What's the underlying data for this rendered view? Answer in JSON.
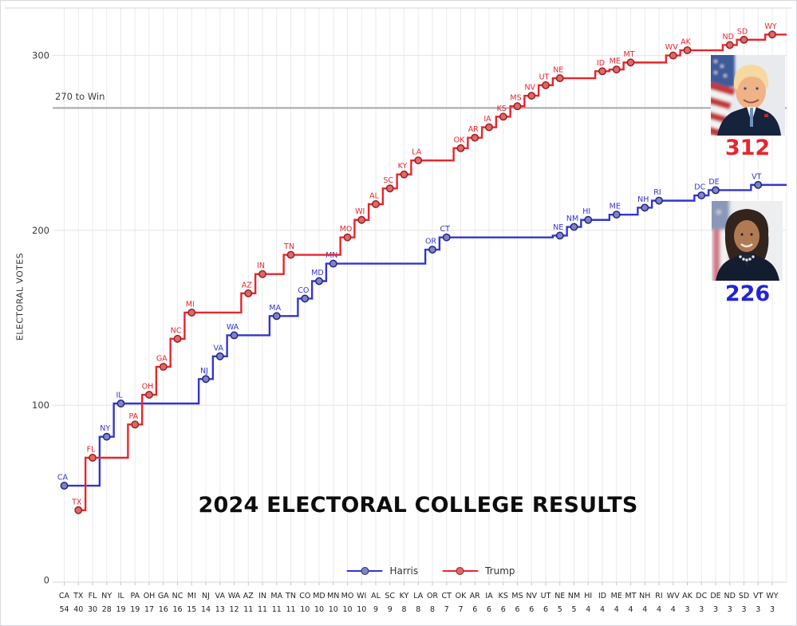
{
  "title": "2024 ELECTORAL COLLEGE RESULTS",
  "ylabel": "ELECTORAL VOTES",
  "threshold_label": "270 to Win",
  "legend": {
    "harris_label": "Harris",
    "trump_label": "Trump"
  },
  "totals": {
    "harris": "226",
    "trump": "312"
  },
  "photos": {
    "trump_alt": "trump-portrait",
    "harris_alt": "harris-portrait"
  },
  "colors": {
    "harris": "#3434d1",
    "trump": "#e8252d",
    "harris_marker_fill": "#7e86bd",
    "harris_marker_stroke": "#23238f",
    "trump_marker_fill": "#d96a6a",
    "trump_marker_stroke": "#a31c1c",
    "grid": "#ebebee",
    "hgrid": "#e4e4e9",
    "spine": "#d4d4d8",
    "tickmark": "#c6c6cb",
    "threshold": "#a6a6ad",
    "tick_text": "#3a3a3a",
    "axis_text": "#222222"
  },
  "chart_data": {
    "type": "line",
    "style": "cumulative-step-mid",
    "title": "2024 ELECTORAL COLLEGE RESULTS",
    "xlabel": "",
    "ylabel": "ELECTORAL VOTES",
    "yticks": [
      0,
      100,
      200,
      300
    ],
    "ylim": [
      0,
      327
    ],
    "grid": "on",
    "legend_position": "bottom-center",
    "threshold": {
      "value": 270,
      "label": "270 to Win"
    },
    "categories": [
      "CA",
      "TX",
      "FL",
      "NY",
      "IL",
      "PA",
      "OH",
      "GA",
      "NC",
      "MI",
      "NJ",
      "VA",
      "WA",
      "AZ",
      "IN",
      "MA",
      "TN",
      "CO",
      "MD",
      "MN",
      "MO",
      "WI",
      "AL",
      "SC",
      "KY",
      "LA",
      "OR",
      "CT",
      "OK",
      "AR",
      "IA",
      "KS",
      "MS",
      "NV",
      "UT",
      "NE",
      "NM",
      "HI",
      "ID",
      "ME",
      "MT",
      "NH",
      "RI",
      "WV",
      "AK",
      "DC",
      "DE",
      "ND",
      "SD",
      "VT",
      "WY"
    ],
    "electoral_votes": [
      54,
      40,
      30,
      28,
      19,
      19,
      17,
      16,
      16,
      15,
      14,
      13,
      12,
      11,
      11,
      11,
      11,
      10,
      10,
      10,
      10,
      10,
      9,
      9,
      8,
      8,
      8,
      7,
      7,
      6,
      6,
      6,
      6,
      6,
      6,
      5,
      5,
      4,
      4,
      4,
      4,
      4,
      4,
      4,
      3,
      3,
      3,
      3,
      3,
      3,
      3
    ],
    "series": [
      {
        "name": "Harris",
        "total": 226,
        "wins": [
          {
            "state": "CA",
            "gained": 54,
            "cumulative": 54
          },
          {
            "state": "NY",
            "gained": 28,
            "cumulative": 82
          },
          {
            "state": "IL",
            "gained": 19,
            "cumulative": 101
          },
          {
            "state": "NJ",
            "gained": 14,
            "cumulative": 115
          },
          {
            "state": "VA",
            "gained": 13,
            "cumulative": 128
          },
          {
            "state": "WA",
            "gained": 12,
            "cumulative": 140
          },
          {
            "state": "MA",
            "gained": 11,
            "cumulative": 151
          },
          {
            "state": "CO",
            "gained": 10,
            "cumulative": 161
          },
          {
            "state": "MD",
            "gained": 10,
            "cumulative": 171
          },
          {
            "state": "MN",
            "gained": 10,
            "cumulative": 181
          },
          {
            "state": "OR",
            "gained": 8,
            "cumulative": 189
          },
          {
            "state": "CT",
            "gained": 7,
            "cumulative": 196
          },
          {
            "state": "NE",
            "gained": 1,
            "cumulative": 197
          },
          {
            "state": "NM",
            "gained": 5,
            "cumulative": 202
          },
          {
            "state": "HI",
            "gained": 4,
            "cumulative": 206
          },
          {
            "state": "ME",
            "gained": 3,
            "cumulative": 209
          },
          {
            "state": "NH",
            "gained": 4,
            "cumulative": 213
          },
          {
            "state": "RI",
            "gained": 4,
            "cumulative": 217
          },
          {
            "state": "DC",
            "gained": 3,
            "cumulative": 220
          },
          {
            "state": "DE",
            "gained": 3,
            "cumulative": 223
          },
          {
            "state": "VT",
            "gained": 3,
            "cumulative": 226
          }
        ]
      },
      {
        "name": "Trump",
        "total": 312,
        "wins": [
          {
            "state": "TX",
            "gained": 40,
            "cumulative": 40
          },
          {
            "state": "FL",
            "gained": 30,
            "cumulative": 70
          },
          {
            "state": "PA",
            "gained": 19,
            "cumulative": 89
          },
          {
            "state": "OH",
            "gained": 17,
            "cumulative": 106
          },
          {
            "state": "GA",
            "gained": 16,
            "cumulative": 122
          },
          {
            "state": "NC",
            "gained": 16,
            "cumulative": 138
          },
          {
            "state": "MI",
            "gained": 15,
            "cumulative": 153
          },
          {
            "state": "AZ",
            "gained": 11,
            "cumulative": 164
          },
          {
            "state": "IN",
            "gained": 11,
            "cumulative": 175
          },
          {
            "state": "TN",
            "gained": 11,
            "cumulative": 186
          },
          {
            "state": "MO",
            "gained": 10,
            "cumulative": 196
          },
          {
            "state": "WI",
            "gained": 10,
            "cumulative": 206
          },
          {
            "state": "AL",
            "gained": 9,
            "cumulative": 215
          },
          {
            "state": "SC",
            "gained": 9,
            "cumulative": 224
          },
          {
            "state": "KY",
            "gained": 8,
            "cumulative": 232
          },
          {
            "state": "LA",
            "gained": 8,
            "cumulative": 240
          },
          {
            "state": "OK",
            "gained": 7,
            "cumulative": 247
          },
          {
            "state": "AR",
            "gained": 6,
            "cumulative": 253
          },
          {
            "state": "IA",
            "gained": 6,
            "cumulative": 259
          },
          {
            "state": "KS",
            "gained": 6,
            "cumulative": 265
          },
          {
            "state": "MS",
            "gained": 6,
            "cumulative": 271
          },
          {
            "state": "NV",
            "gained": 6,
            "cumulative": 277
          },
          {
            "state": "UT",
            "gained": 6,
            "cumulative": 283
          },
          {
            "state": "NE",
            "gained": 4,
            "cumulative": 287
          },
          {
            "state": "ID",
            "gained": 4,
            "cumulative": 291
          },
          {
            "state": "ME",
            "gained": 1,
            "cumulative": 292
          },
          {
            "state": "MT",
            "gained": 4,
            "cumulative": 296
          },
          {
            "state": "WV",
            "gained": 4,
            "cumulative": 300
          },
          {
            "state": "AK",
            "gained": 3,
            "cumulative": 303
          },
          {
            "state": "ND",
            "gained": 3,
            "cumulative": 306
          },
          {
            "state": "SD",
            "gained": 3,
            "cumulative": 309
          },
          {
            "state": "WY",
            "gained": 3,
            "cumulative": 312
          }
        ]
      }
    ]
  }
}
